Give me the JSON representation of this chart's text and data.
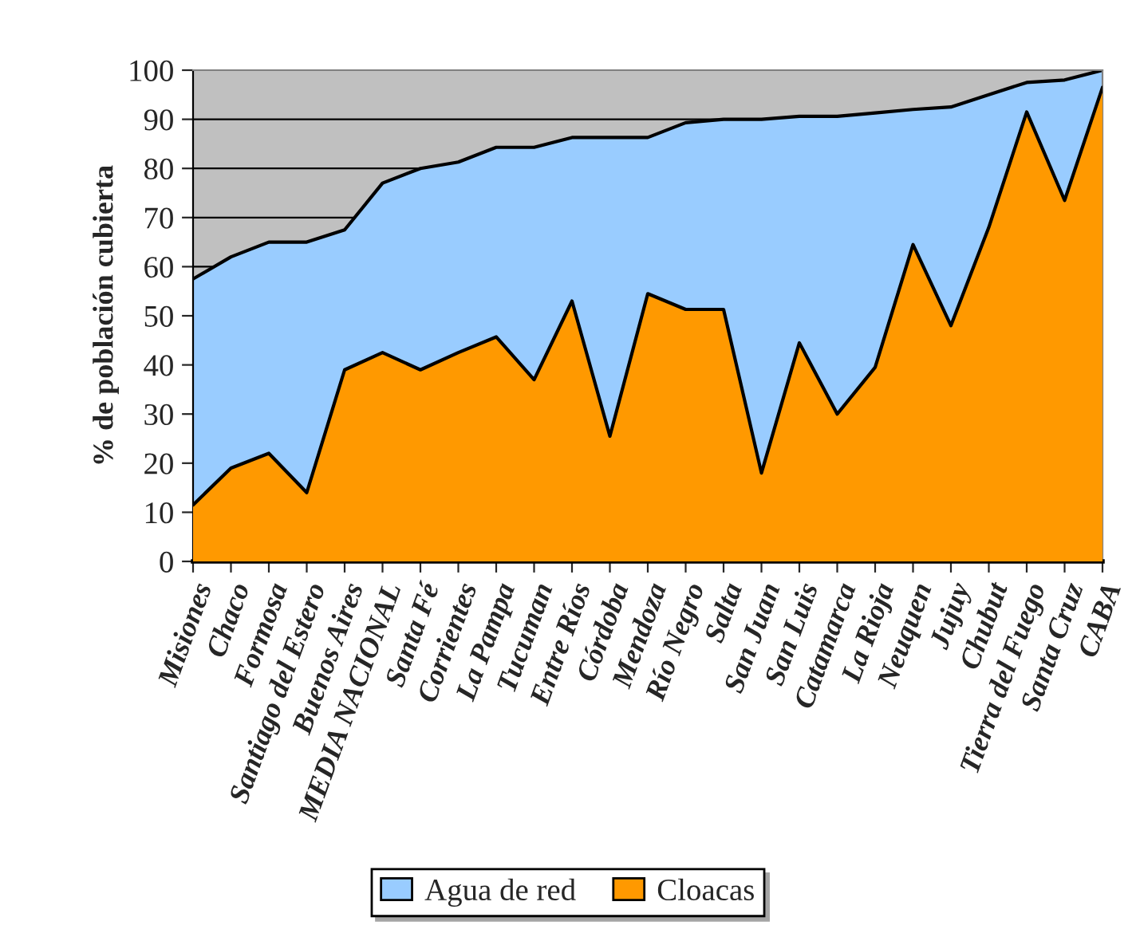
{
  "chart_data": {
    "type": "area",
    "ylabel": "% de población cubierta",
    "categories": [
      "Misiones",
      "Chaco",
      "Formosa",
      "Santiago del Estero",
      "Buenos Aires",
      "MEDIA NACIONAL",
      "Santa Fé",
      "Corrientes",
      "La Pampa",
      "Tucuman",
      "Entre Ríos",
      "Córdoba",
      "Mendoza",
      "Río Negro",
      "Salta",
      "San Juan",
      "San Luis",
      "Catamarca",
      "La Rioja",
      "Neuquen",
      "Jujuy",
      "Chubut",
      "Tierra del Fuego",
      "Santa Cruz",
      "CABA"
    ],
    "series": [
      {
        "name": "Agua de red",
        "color": "#99ccff",
        "values": [
          57.5,
          62,
          65,
          65,
          67.5,
          77,
          80,
          81.3,
          84.3,
          84.3,
          86.3,
          86.3,
          86.3,
          89.3,
          90,
          90,
          90.6,
          90.6,
          91.3,
          92,
          92.5,
          95,
          97.5,
          98,
          100
        ]
      },
      {
        "name": "Cloacas",
        "color": "#ff9900",
        "values": [
          11.5,
          19,
          22,
          14,
          39,
          42.5,
          39,
          42.5,
          45.7,
          37,
          53,
          25.5,
          54.5,
          51.3,
          51.3,
          18,
          44.5,
          30,
          39.5,
          64.5,
          48,
          68,
          91.5,
          73.5,
          96.5
        ]
      }
    ],
    "ylim": [
      0,
      100
    ],
    "yticks": [
      0,
      10,
      20,
      30,
      40,
      50,
      60,
      70,
      80,
      90,
      100
    ],
    "grid": "y",
    "legend": "bottom"
  }
}
